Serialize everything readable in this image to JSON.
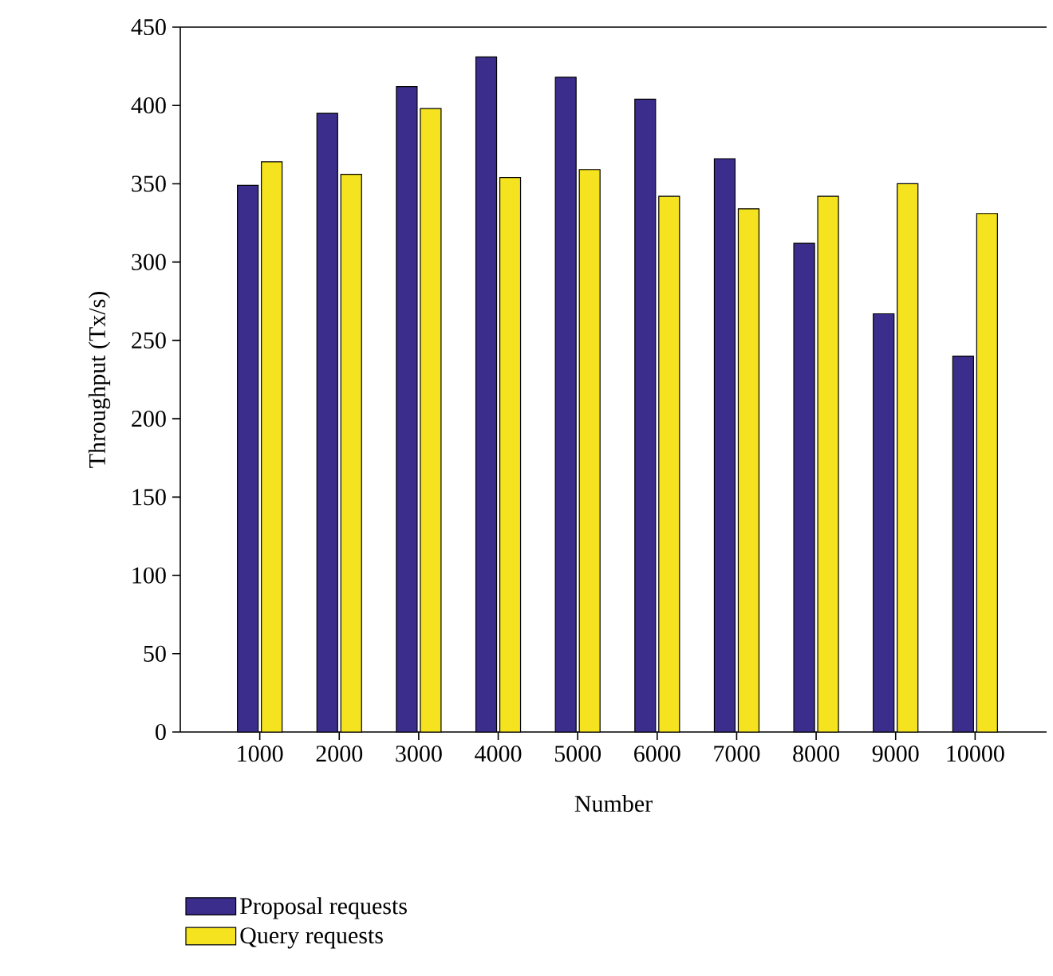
{
  "chart_data": {
    "type": "bar",
    "xlabel": "Number",
    "ylabel": "Throughput (Tx/s)",
    "categories": [
      "1000",
      "2000",
      "3000",
      "4000",
      "5000",
      "6000",
      "7000",
      "8000",
      "9000",
      "10000"
    ],
    "series": [
      {
        "name": "Proposal requests",
        "color": "#3b2d8c",
        "values": [
          349,
          395,
          412,
          431,
          418,
          404,
          366,
          312,
          267,
          240
        ]
      },
      {
        "name": "Query requests",
        "color": "#f4e31e",
        "values": [
          364,
          356,
          398,
          354,
          359,
          342,
          334,
          342,
          350,
          331
        ]
      }
    ],
    "ylim": [
      0,
      450
    ],
    "yticks": [
      0,
      50,
      100,
      150,
      200,
      250,
      300,
      350,
      400,
      450
    ],
    "legend": "bottom left"
  }
}
